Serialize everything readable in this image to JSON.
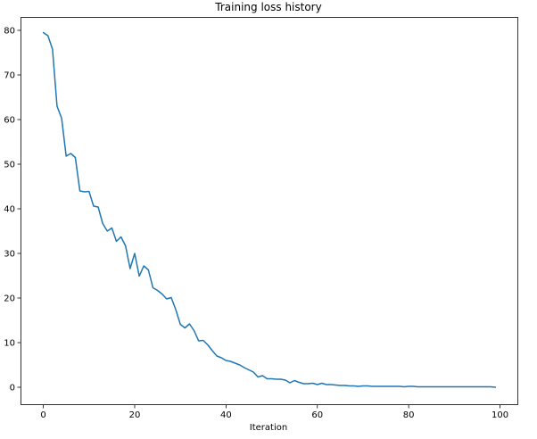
{
  "chart_data": {
    "type": "line",
    "title": "Training loss history",
    "xlabel": "Iteration",
    "ylabel": "",
    "xlim": [
      -5,
      104
    ],
    "ylim": [
      -4,
      83
    ],
    "xticks": [
      0,
      20,
      40,
      60,
      80,
      100
    ],
    "yticks": [
      0,
      10,
      20,
      30,
      40,
      50,
      60,
      70,
      80
    ],
    "grid": false,
    "legend": "none",
    "series": [
      {
        "color": "#1f77b4",
        "x": [
          0,
          1,
          2,
          3,
          4,
          5,
          6,
          7,
          8,
          9,
          10,
          11,
          12,
          13,
          14,
          15,
          16,
          17,
          18,
          19,
          20,
          21,
          22,
          23,
          24,
          25,
          26,
          27,
          28,
          29,
          30,
          31,
          32,
          33,
          34,
          35,
          36,
          37,
          38,
          39,
          40,
          41,
          42,
          43,
          44,
          45,
          46,
          47,
          48,
          49,
          50,
          51,
          52,
          53,
          54,
          55,
          56,
          57,
          58,
          59,
          60,
          61,
          62,
          63,
          64,
          65,
          66,
          67,
          68,
          69,
          70,
          71,
          72,
          73,
          74,
          75,
          76,
          77,
          78,
          79,
          80,
          81,
          82,
          83,
          84,
          85,
          86,
          87,
          88,
          89,
          90,
          91,
          92,
          93,
          94,
          95,
          96,
          97,
          98,
          99
        ],
        "values": [
          79.5,
          78.8,
          75.8,
          63.0,
          60.3,
          51.8,
          52.4,
          51.5,
          44.0,
          43.8,
          43.9,
          40.6,
          40.4,
          36.7,
          35.0,
          35.7,
          32.7,
          33.7,
          31.7,
          26.6,
          30.0,
          24.9,
          27.2,
          26.3,
          22.3,
          21.7,
          20.9,
          19.8,
          20.1,
          17.4,
          14.1,
          13.3,
          14.2,
          12.7,
          10.4,
          10.5,
          9.5,
          8.2,
          7.0,
          6.6,
          6.0,
          5.8,
          5.4,
          5.0,
          4.4,
          3.9,
          3.4,
          2.3,
          2.6,
          1.9,
          1.9,
          1.8,
          1.8,
          1.6,
          1.0,
          1.5,
          1.1,
          0.8,
          0.8,
          0.9,
          0.6,
          0.9,
          0.6,
          0.6,
          0.5,
          0.4,
          0.4,
          0.3,
          0.3,
          0.2,
          0.3,
          0.3,
          0.2,
          0.2,
          0.2,
          0.2,
          0.2,
          0.2,
          0.2,
          0.1,
          0.2,
          0.2,
          0.1,
          0.1,
          0.1,
          0.1,
          0.1,
          0.1,
          0.1,
          0.1,
          0.1,
          0.1,
          0.1,
          0.1,
          0.1,
          0.1,
          0.1,
          0.1,
          0.1,
          0.0
        ]
      }
    ]
  }
}
